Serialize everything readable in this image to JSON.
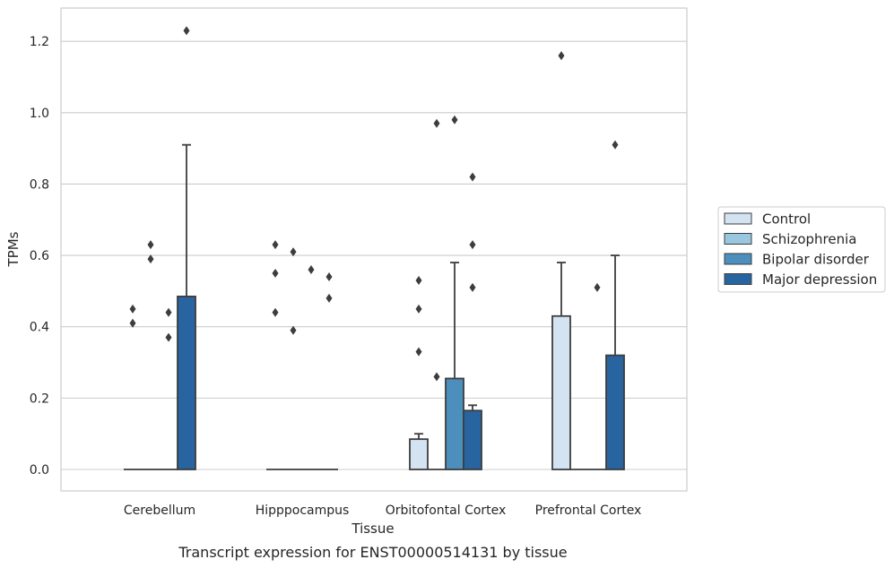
{
  "caption": "Transcript expression for ENST00000514131 by tissue",
  "chart_data": {
    "type": "bar",
    "title": "",
    "xlabel": "Tissue",
    "ylabel": "TPMs",
    "ylim": [
      -0.06,
      1.29
    ],
    "yticks": [
      0.0,
      0.2,
      0.4,
      0.6,
      0.8,
      1.0,
      1.2
    ],
    "ytick_labels": [
      "0.0",
      "0.2",
      "0.4",
      "0.6",
      "0.8",
      "1.0",
      "1.2"
    ],
    "grid": "horizontal",
    "legend_position": "right",
    "categories": [
      "Cerebellum",
      "Hipppocampus",
      "Orbitofontal Cortex",
      "Prefrontal Cortex"
    ],
    "series": [
      {
        "name": "Control",
        "color": "#d3e3f2",
        "values": [
          0.0,
          0.0,
          0.085,
          0.43
        ],
        "whisker_high": [
          null,
          null,
          0.1,
          0.58
        ],
        "outliers": [
          [
            0.45,
            0.41
          ],
          [
            0.63,
            0.55,
            0.44
          ],
          [
            0.53,
            0.45,
            0.33
          ],
          [
            1.16
          ]
        ]
      },
      {
        "name": "Schizophrenia",
        "color": "#9ac7e0",
        "values": [
          0.0,
          0.0,
          0.0,
          0.0
        ],
        "whisker_high": [
          null,
          null,
          null,
          null
        ],
        "outliers": [
          [
            0.63,
            0.59
          ],
          [
            0.61,
            0.39
          ],
          [
            0.97,
            0.26
          ],
          []
        ]
      },
      {
        "name": "Bipolar disorder",
        "color": "#4c8fbd",
        "values": [
          0.0,
          0.0,
          0.255,
          0.0
        ],
        "whisker_high": [
          null,
          null,
          0.58,
          null
        ],
        "outliers": [
          [
            0.44,
            0.37
          ],
          [
            0.56
          ],
          [
            0.98
          ],
          [
            0.51
          ]
        ]
      },
      {
        "name": "Major depression",
        "color": "#2865a0",
        "values": [
          0.485,
          0.0,
          0.165,
          0.32
        ],
        "whisker_high": [
          0.91,
          null,
          0.18,
          0.6
        ],
        "outliers": [
          [
            1.23
          ],
          [
            0.54,
            0.48
          ],
          [
            0.82,
            0.63,
            0.51
          ],
          [
            0.91
          ]
        ]
      }
    ]
  }
}
